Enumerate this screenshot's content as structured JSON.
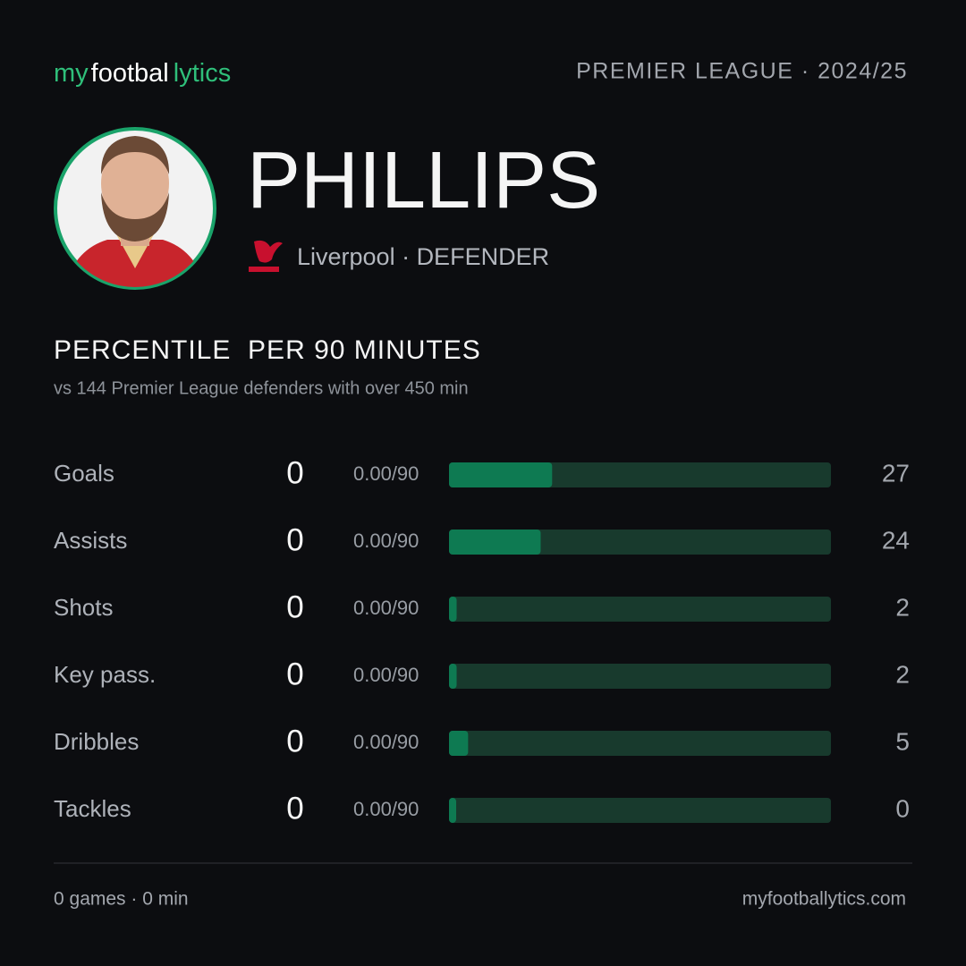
{
  "header": {
    "logo": [
      "my",
      "footbal",
      "lytics"
    ],
    "league": "PREMIER LEAGUE · 2024/25"
  },
  "player": {
    "name": "PHILLIPS",
    "club_line": "Liverpool · DEFENDER"
  },
  "section": {
    "title": "PERCENTILE  PER 90 MINUTES",
    "subtitle": "vs 144 Premier League defenders with over 450 min"
  },
  "stats": {
    "xlim": [
      0,
      100
    ],
    "color": "#0e7a52",
    "track_color": "#183a2d",
    "rows": [
      {
        "label": "Goals",
        "count": 0,
        "rate": "0.00/90",
        "percentile": 27
      },
      {
        "label": "Assists",
        "count": 0,
        "rate": "0.00/90",
        "percentile": 24
      },
      {
        "label": "Shots",
        "count": 0,
        "rate": "0.00/90",
        "percentile": 2
      },
      {
        "label": "Key pass.",
        "count": 0,
        "rate": "0.00/90",
        "percentile": 2
      },
      {
        "label": "Dribbles",
        "count": 0,
        "rate": "0.00/90",
        "percentile": 5
      },
      {
        "label": "Tackles",
        "count": 0,
        "rate": "0.00/90",
        "percentile": 0
      }
    ]
  },
  "footer": {
    "summary": "0 games · 0 min",
    "site": "myfootballytics.com"
  }
}
